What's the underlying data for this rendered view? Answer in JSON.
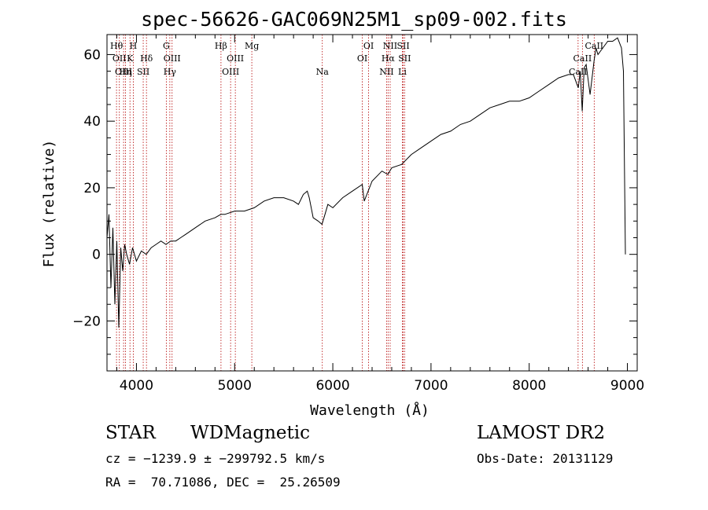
{
  "chart_data": {
    "type": "line",
    "title": "spec-56626-GAC069N25M1_sp09-002.fits",
    "xlabel": "Wavelength (Å)",
    "ylabel": "Flux (relative)",
    "xlim": [
      3700,
      9100
    ],
    "ylim": [
      -35,
      66
    ],
    "x_ticks": [
      4000,
      5000,
      6000,
      7000,
      8000,
      9000
    ],
    "y_ticks": [
      -20,
      0,
      20,
      40,
      60
    ],
    "y_tick_labels": [
      "−20",
      "0",
      "20",
      "40",
      "60"
    ],
    "grid": false,
    "series": [
      {
        "x": [
          3700,
          3720,
          3740,
          3760,
          3780,
          3800,
          3820,
          3840,
          3860,
          3880,
          3900,
          3930,
          3960,
          4000,
          4050,
          4100,
          4150,
          4200,
          4250,
          4300,
          4350,
          4400,
          4450,
          4500,
          4600,
          4700,
          4800,
          4860,
          4900,
          5000,
          5100,
          5200,
          5300,
          5400,
          5500,
          5600,
          5650,
          5700,
          5740,
          5760,
          5800,
          5850,
          5890,
          5920,
          5950,
          6000,
          6100,
          6200,
          6300,
          6320,
          6400,
          6500,
          6560,
          6600,
          6700,
          6800,
          6900,
          7000,
          7100,
          7200,
          7300,
          7400,
          7500,
          7600,
          7700,
          7800,
          7900,
          8000,
          8100,
          8200,
          8300,
          8400,
          8450,
          8500,
          8520,
          8540,
          8560,
          8580,
          8620,
          8660,
          8680,
          8700,
          8750,
          8800,
          8850,
          8900,
          8940,
          8960,
          8980
        ],
        "y": [
          5,
          12,
          -10,
          8,
          -15,
          4,
          -22,
          2,
          -5,
          3,
          0,
          -3,
          2,
          -2,
          1,
          0,
          2,
          3,
          4,
          3,
          4,
          4,
          5,
          6,
          8,
          10,
          11,
          12,
          12,
          13,
          13,
          14,
          16,
          17,
          17,
          16,
          15,
          18,
          19,
          17,
          11,
          10,
          9,
          12,
          15,
          14,
          17,
          19,
          21,
          16,
          22,
          25,
          24,
          26,
          27,
          30,
          32,
          34,
          36,
          37,
          39,
          40,
          42,
          44,
          45,
          46,
          46,
          47,
          49,
          51,
          53,
          54,
          54,
          50,
          55,
          43,
          56,
          57,
          48,
          58,
          62,
          60,
          62,
          64,
          64,
          65,
          62,
          55,
          0
        ]
      }
    ],
    "lines": [
      {
        "x": 3797,
        "label": "Hθ",
        "row": 1
      },
      {
        "x": 3826,
        "label": "OII",
        "row": 2
      },
      {
        "x": 3869,
        "label": "OIII",
        "row": 3
      },
      {
        "x": 3889,
        "label": "Hη",
        "row": 3
      },
      {
        "x": 3934,
        "label": "K",
        "row": 2
      },
      {
        "x": 3968,
        "label": "H",
        "row": 1
      },
      {
        "x": 4069,
        "label": "SII",
        "row": 3
      },
      {
        "x": 4102,
        "label": "Hδ",
        "row": 2
      },
      {
        "x": 4304,
        "label": "G",
        "row": 1
      },
      {
        "x": 4340,
        "label": "Hγ",
        "row": 3
      },
      {
        "x": 4363,
        "label": "OIII",
        "row": 2
      },
      {
        "x": 4861,
        "label": "Hβ",
        "row": 1
      },
      {
        "x": 4959,
        "label": "OIII",
        "row": 3
      },
      {
        "x": 5007,
        "label": "OIII",
        "row": 2
      },
      {
        "x": 5175,
        "label": "Mg",
        "row": 1
      },
      {
        "x": 5893,
        "label": "Na",
        "row": 3
      },
      {
        "x": 6300,
        "label": "OI",
        "row": 2
      },
      {
        "x": 6364,
        "label": "OI",
        "row": 1
      },
      {
        "x": 6548,
        "label": "NII",
        "row": 3
      },
      {
        "x": 6563,
        "label": "Hα",
        "row": 2
      },
      {
        "x": 6584,
        "label": "NII",
        "row": 1
      },
      {
        "x": 6708,
        "label": "Li",
        "row": 3
      },
      {
        "x": 6717,
        "label": "SII",
        "row": 1
      },
      {
        "x": 6731,
        "label": "SII",
        "row": 2
      },
      {
        "x": 8498,
        "label": "CaII",
        "row": 3
      },
      {
        "x": 8542,
        "label": "CaII",
        "row": 2
      },
      {
        "x": 8662,
        "label": "CaII",
        "row": 1
      }
    ]
  },
  "footer": {
    "object_class": "STAR",
    "subclass": "WDMagnetic",
    "survey": "LAMOST DR2",
    "cz_line": "cz = −1239.9 ± −299792.5 km/s",
    "obs_date": "Obs-Date: 20131129",
    "coords": "RA =  70.71086, DEC =  25.26509"
  }
}
